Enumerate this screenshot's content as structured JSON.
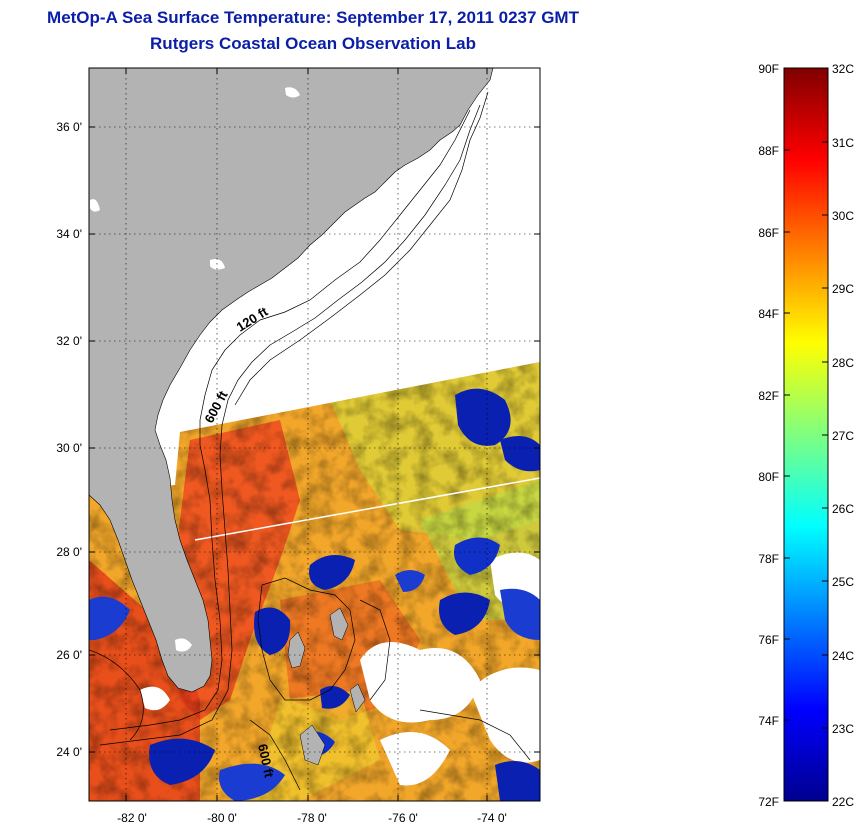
{
  "title": "MetOp-A Sea Surface Temperature:  September 17, 2011 0237 GMT",
  "subtitle": "Rutgers Coastal Ocean Observation Lab",
  "map": {
    "lat_labels": [
      "36 0'",
      "34 0'",
      "32 0'",
      "30 0'",
      "28 0'",
      "26 0'",
      "24 0'"
    ],
    "lon_labels": [
      "-82 0'",
      "-80 0'",
      "-78 0'",
      "-76 0'",
      "-74 0'"
    ],
    "lat_range": [
      23,
      37
    ],
    "lon_range": [
      -83,
      -73
    ],
    "contour_labels": [
      "120 ft",
      "600 ft",
      "600 ft"
    ],
    "colors": {
      "land": "#b3b3b3",
      "no_data": "#ffffff"
    }
  },
  "colorbar": {
    "fahrenheit_labels": [
      "90F",
      "88F",
      "86F",
      "84F",
      "82F",
      "80F",
      "78F",
      "76F",
      "74F",
      "72F"
    ],
    "celsius_labels": [
      "32C",
      "31C",
      "30C",
      "29C",
      "28C",
      "27C",
      "26C",
      "25C",
      "24C",
      "23C",
      "22C"
    ],
    "range_c": [
      22,
      32
    ],
    "colormap": "jet"
  }
}
